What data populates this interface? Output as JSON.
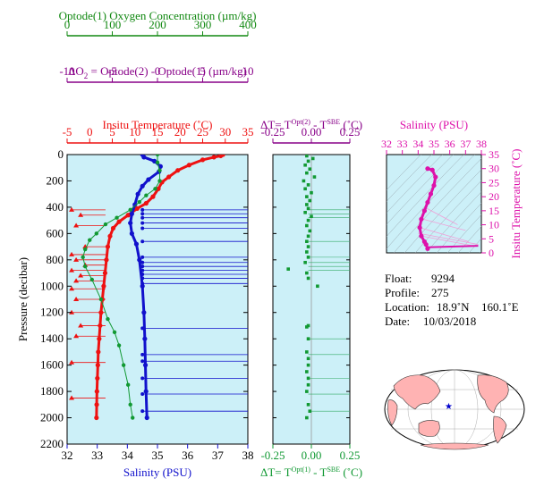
{
  "chart_data": [
    {
      "type": "line",
      "id": "main-profile",
      "ylabel": "Pressure (decibar)",
      "ylim": [
        2200,
        0
      ],
      "y_ticks": [
        0,
        200,
        400,
        600,
        800,
        1000,
        1200,
        1400,
        1600,
        1800,
        2000,
        2200
      ],
      "axes": [
        {
          "label": "Optode(1) Oxygen Concentration  (µm/kg)",
          "range": [
            0,
            400
          ],
          "ticks": [
            0,
            100,
            200,
            300,
            400
          ],
          "color": "#118811"
        },
        {
          "label_parts": [
            "ΔO",
            "2",
            " = Optode(2) - Optode(1)   (µm/kg)"
          ],
          "range": [
            -10,
            10
          ],
          "ticks": [
            -10,
            -5,
            0,
            5,
            10
          ],
          "color": "#880088"
        },
        {
          "label": "Insitu Temperature  (˚C)",
          "range": [
            -5,
            35
          ],
          "ticks": [
            -5,
            0,
            5,
            10,
            15,
            20,
            25,
            30,
            35
          ],
          "color": "#ee1111"
        },
        {
          "label": "Salinity (PSU)",
          "range": [
            32,
            38
          ],
          "ticks": [
            32,
            33,
            34,
            35,
            36,
            37,
            38
          ],
          "color": "#1111cc"
        }
      ],
      "series": [
        {
          "variable": "temperature",
          "color": "#ee1111",
          "points": [
            [
              29.5,
              0
            ],
            [
              29,
              10
            ],
            [
              27.5,
              20
            ],
            [
              25,
              40
            ],
            [
              22,
              80
            ],
            [
              19.5,
              120
            ],
            [
              17.5,
              170
            ],
            [
              16,
              210
            ],
            [
              15.2,
              260
            ],
            [
              14,
              320
            ],
            [
              12.5,
              370
            ],
            [
              10.5,
              410
            ],
            [
              8.5,
              460
            ],
            [
              6.5,
              510
            ],
            [
              5.2,
              560
            ],
            [
              4.5,
              620
            ],
            [
              4,
              700
            ],
            [
              3.7,
              800
            ],
            [
              3.4,
              900
            ],
            [
              3.1,
              1000
            ],
            [
              2.8,
              1100
            ],
            [
              2.5,
              1200
            ],
            [
              2.3,
              1300
            ],
            [
              2.1,
              1400
            ],
            [
              1.9,
              1500
            ],
            [
              1.8,
              1600
            ],
            [
              1.7,
              1700
            ],
            [
              1.6,
              1800
            ],
            [
              1.55,
              1900
            ],
            [
              1.5,
              2000
            ]
          ]
        },
        {
          "variable": "salinity",
          "color": "#1111cc",
          "points": [
            [
              34.5,
              0
            ],
            [
              34.55,
              20
            ],
            [
              34.9,
              50
            ],
            [
              35.1,
              90
            ],
            [
              35.05,
              130
            ],
            [
              34.7,
              190
            ],
            [
              34.5,
              240
            ],
            [
              34.35,
              300
            ],
            [
              34.25,
              380
            ],
            [
              34.15,
              450
            ],
            [
              34.1,
              520
            ],
            [
              34.15,
              600
            ],
            [
              34.3,
              680
            ],
            [
              34.4,
              800
            ],
            [
              34.5,
              1000
            ],
            [
              34.55,
              1200
            ],
            [
              34.58,
              1400
            ],
            [
              34.6,
              1600
            ],
            [
              34.62,
              1800
            ],
            [
              34.65,
              2000
            ]
          ]
        },
        {
          "variable": "oxygen",
          "color": "#119933",
          "points": [
            [
              200,
              0
            ],
            [
              200,
              60
            ],
            [
              205,
              120
            ],
            [
              205,
              200
            ],
            [
              195,
              260
            ],
            [
              175,
              310
            ],
            [
              160,
              360
            ],
            [
              140,
              420
            ],
            [
              110,
              480
            ],
            [
              85,
              530
            ],
            [
              65,
              600
            ],
            [
              50,
              650
            ],
            [
              40,
              720
            ],
            [
              35,
              780
            ],
            [
              40,
              850
            ],
            [
              55,
              950
            ],
            [
              75,
              1100
            ],
            [
              90,
              1250
            ],
            [
              105,
              1350
            ],
            [
              115,
              1450
            ],
            [
              125,
              1600
            ],
            [
              135,
              1750
            ],
            [
              140,
              1900
            ],
            [
              145,
              2000
            ]
          ]
        }
      ]
    },
    {
      "type": "scatter",
      "id": "delta-t",
      "xlabel_top_parts": [
        "ΔT= T",
        "Opt(2)",
        " - T",
        "SBE",
        " (˚C)"
      ],
      "xlabel_bottom_parts": [
        "ΔT= T",
        "Opt(1)",
        " - T",
        "SBE",
        " (˚C)"
      ],
      "xlim": [
        -0.25,
        0.25
      ],
      "x_ticks": [
        -0.25,
        0,
        0.25
      ],
      "x_tick_labels": [
        "-0.25",
        "0.00",
        "0.25"
      ],
      "ylim": [
        2200,
        0
      ],
      "color_top": "#880088",
      "color_bottom": "#119933",
      "points": [
        [
          -0.03,
          10
        ],
        [
          0.01,
          30
        ],
        [
          -0.02,
          50
        ],
        [
          -0.04,
          80
        ],
        [
          -0.01,
          110
        ],
        [
          -0.03,
          140
        ],
        [
          0.02,
          170
        ],
        [
          -0.05,
          200
        ],
        [
          -0.02,
          230
        ],
        [
          -0.04,
          260
        ],
        [
          0.0,
          290
        ],
        [
          -0.03,
          320
        ],
        [
          -0.01,
          350
        ],
        [
          -0.03,
          380
        ],
        [
          -0.02,
          410
        ],
        [
          -0.04,
          440
        ],
        [
          0.0,
          470
        ],
        [
          -0.02,
          500
        ],
        [
          -0.03,
          540
        ],
        [
          -0.01,
          580
        ],
        [
          -0.02,
          620
        ],
        [
          -0.03,
          660
        ],
        [
          -0.02,
          700
        ],
        [
          -0.03,
          740
        ],
        [
          -0.02,
          780
        ],
        [
          -0.04,
          820
        ],
        [
          -0.15,
          870
        ],
        [
          -0.03,
          900
        ],
        [
          -0.02,
          940
        ],
        [
          0.04,
          1000
        ],
        [
          -0.02,
          1300
        ],
        [
          -0.03,
          1310
        ],
        [
          -0.02,
          1400
        ],
        [
          -0.03,
          1500
        ],
        [
          -0.02,
          1550
        ],
        [
          -0.02,
          1600
        ],
        [
          -0.03,
          1650
        ],
        [
          -0.02,
          1700
        ],
        [
          -0.02,
          1750
        ],
        [
          -0.03,
          1800
        ],
        [
          -0.02,
          1900
        ],
        [
          -0.01,
          1950
        ],
        [
          -0.03,
          2000
        ]
      ]
    },
    {
      "type": "line",
      "id": "ts-diagram",
      "xlabel": "Salinity (PSU)",
      "ylabel": "Insitu Temperature (˚C)",
      "xlim": [
        32,
        38
      ],
      "ylim": [
        0,
        35
      ],
      "x_ticks": [
        32,
        33,
        34,
        35,
        36,
        37,
        38
      ],
      "y_ticks": [
        0,
        5,
        10,
        15,
        20,
        25,
        30,
        35
      ],
      "color": "#dd11aa",
      "points": [
        [
          34.6,
          1.5
        ],
        [
          34.5,
          3
        ],
        [
          34.4,
          4
        ],
        [
          34.2,
          6
        ],
        [
          34.1,
          9
        ],
        [
          34.2,
          12
        ],
        [
          34.4,
          15
        ],
        [
          34.6,
          18
        ],
        [
          34.8,
          21
        ],
        [
          35,
          24
        ],
        [
          35.1,
          27
        ],
        [
          34.9,
          29.5
        ],
        [
          34.6,
          30
        ]
      ]
    }
  ],
  "float_info": {
    "float_label": "Float:",
    "float_value": "9294",
    "profile_label": "Profile:",
    "profile_value": "275",
    "location_label": "Location:",
    "lat": "18.9˚N",
    "lon": "160.1˚E",
    "date_label": "Date:",
    "date_value": "10/03/2018"
  },
  "map": {
    "ocean_color": "#ffffff",
    "land_color": "#ffb3b3",
    "marker_color": "#0000cc"
  },
  "panel_bg": "#ccf0f8"
}
